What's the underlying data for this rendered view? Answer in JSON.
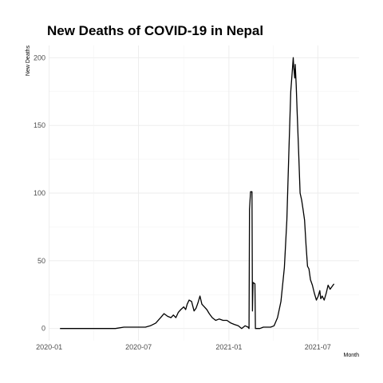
{
  "chart_data": {
    "type": "line",
    "title": "New Deaths of COVID-19 in Nepal",
    "xlabel": "Month",
    "ylabel": "New Deaths",
    "x_ticks": [
      "2020-01",
      "2020-07",
      "2021-01",
      "2021-07"
    ],
    "y_ticks": [
      "0",
      "50",
      "100",
      "150",
      "200"
    ],
    "ylim": [
      -9,
      209
    ],
    "xlim": [
      "2019-12-31",
      "2021-09-23"
    ],
    "grid": true,
    "legend": "none",
    "series": [
      {
        "color": "#000000",
        "points": [
          [
            "2020-01-23",
            0
          ],
          [
            "2020-03-15",
            0
          ],
          [
            "2020-05-15",
            0
          ],
          [
            "2020-06-01",
            1
          ],
          [
            "2020-06-20",
            1
          ],
          [
            "2020-07-05",
            1
          ],
          [
            "2020-07-15",
            1
          ],
          [
            "2020-07-25",
            2
          ],
          [
            "2020-08-05",
            4
          ],
          [
            "2020-08-15",
            8
          ],
          [
            "2020-08-22",
            11
          ],
          [
            "2020-08-29",
            9
          ],
          [
            "2020-09-05",
            8
          ],
          [
            "2020-09-10",
            10
          ],
          [
            "2020-09-15",
            8
          ],
          [
            "2020-09-20",
            12
          ],
          [
            "2020-09-25",
            14
          ],
          [
            "2020-10-01",
            16
          ],
          [
            "2020-10-05",
            14
          ],
          [
            "2020-10-08",
            18
          ],
          [
            "2020-10-12",
            21
          ],
          [
            "2020-10-17",
            20
          ],
          [
            "2020-10-22",
            13
          ],
          [
            "2020-10-26",
            15
          ],
          [
            "2020-10-30",
            19
          ],
          [
            "2020-11-03",
            24
          ],
          [
            "2020-11-07",
            18
          ],
          [
            "2020-11-12",
            16
          ],
          [
            "2020-11-17",
            14
          ],
          [
            "2020-11-22",
            11
          ],
          [
            "2020-11-28",
            8
          ],
          [
            "2020-12-05",
            6
          ],
          [
            "2020-12-12",
            7
          ],
          [
            "2020-12-20",
            6
          ],
          [
            "2020-12-28",
            6
          ],
          [
            "2021-01-05",
            4
          ],
          [
            "2021-01-12",
            3
          ],
          [
            "2021-01-20",
            2
          ],
          [
            "2021-01-27",
            0
          ],
          [
            "2021-02-03",
            2
          ],
          [
            "2021-02-09",
            1
          ],
          [
            "2021-02-11",
            0
          ],
          [
            "2021-02-12",
            88
          ],
          [
            "2021-02-14",
            101
          ],
          [
            "2021-02-17",
            101
          ],
          [
            "2021-02-18",
            13
          ],
          [
            "2021-02-19",
            34
          ],
          [
            "2021-02-23",
            33
          ],
          [
            "2021-02-24",
            0
          ],
          [
            "2021-03-05",
            0
          ],
          [
            "2021-03-12",
            1
          ],
          [
            "2021-03-20",
            1
          ],
          [
            "2021-03-27",
            1
          ],
          [
            "2021-04-03",
            2
          ],
          [
            "2021-04-10",
            8
          ],
          [
            "2021-04-17",
            20
          ],
          [
            "2021-04-24",
            45
          ],
          [
            "2021-04-29",
            80
          ],
          [
            "2021-05-03",
            130
          ],
          [
            "2021-05-07",
            175
          ],
          [
            "2021-05-10",
            190
          ],
          [
            "2021-05-12",
            200
          ],
          [
            "2021-05-13",
            193
          ],
          [
            "2021-05-15",
            185
          ],
          [
            "2021-05-16",
            195
          ],
          [
            "2021-05-18",
            180
          ],
          [
            "2021-05-20",
            160
          ],
          [
            "2021-05-23",
            130
          ],
          [
            "2021-05-26",
            100
          ],
          [
            "2021-05-29",
            95
          ],
          [
            "2021-06-01",
            88
          ],
          [
            "2021-06-04",
            80
          ],
          [
            "2021-06-07",
            62
          ],
          [
            "2021-06-10",
            46
          ],
          [
            "2021-06-13",
            44
          ],
          [
            "2021-06-16",
            36
          ],
          [
            "2021-06-20",
            32
          ],
          [
            "2021-06-24",
            26
          ],
          [
            "2021-06-28",
            21
          ],
          [
            "2021-07-02",
            24
          ],
          [
            "2021-07-05",
            28
          ],
          [
            "2021-07-07",
            22
          ],
          [
            "2021-07-10",
            24
          ],
          [
            "2021-07-14",
            21
          ],
          [
            "2021-07-18",
            26
          ],
          [
            "2021-07-22",
            32
          ],
          [
            "2021-07-26",
            29
          ],
          [
            "2021-07-30",
            31
          ],
          [
            "2021-08-03",
            33
          ]
        ]
      }
    ]
  }
}
